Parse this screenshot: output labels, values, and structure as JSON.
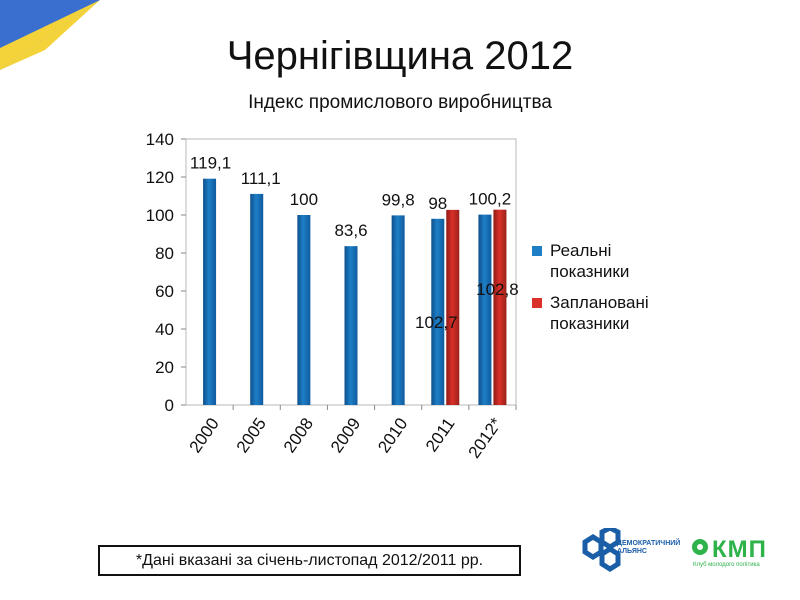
{
  "header": {
    "title": "Чернігівщина 2012",
    "subtitle": "Індекс промислового виробництва"
  },
  "note": "*Дані вказані за січень-листопад 2012/2011 рр.",
  "logos": {
    "left_text": "ДЕМОКРАТИЧНИЙ АЛЬЯНС",
    "right_text": "КМП",
    "right_subtext": "Клуб молодого політика"
  },
  "colors": {
    "real": "#1e7fc6",
    "planned": "#d9302a",
    "flag_blue": "#3a6fd0",
    "flag_yellow": "#f4d23a"
  },
  "chart_data": {
    "type": "bar",
    "categories": [
      "2000",
      "2005",
      "2008",
      "2009",
      "2010",
      "2011",
      "2012*"
    ],
    "series": [
      {
        "name": "Реальні показники",
        "values": [
          119.1,
          111.1,
          100,
          83.6,
          99.8,
          98,
          100.2
        ]
      },
      {
        "name": "Заплановані показники",
        "values": [
          null,
          null,
          null,
          null,
          null,
          102.7,
          102.8
        ]
      }
    ],
    "data_labels": {
      "real": [
        "119,1",
        "111,1",
        "100",
        "83,6",
        "99,8",
        "98",
        "100,2"
      ],
      "planned": [
        null,
        null,
        null,
        null,
        null,
        "102,7",
        "102,8"
      ]
    },
    "y_ticks": [
      "0",
      "20",
      "40",
      "60",
      "80",
      "100",
      "120",
      "140"
    ],
    "ylim": [
      0,
      140
    ],
    "legend_position": "right",
    "grid": false
  }
}
